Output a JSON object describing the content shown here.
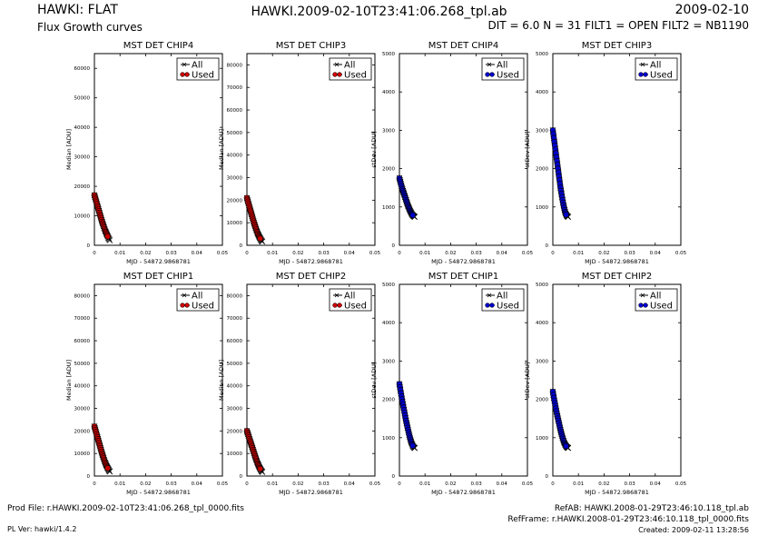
{
  "header": {
    "title_left": "HAWKI: FLAT",
    "subtitle_left": "Flux Growth curves",
    "title_center": "HAWKI.2009-02-10T23:41:06.268_tpl.ab",
    "date_right": "2009-02-10",
    "params_right": "DIT = 6.0 N = 31 FILT1 = OPEN FILT2 = NB1190"
  },
  "footer": {
    "prod_file": "Prod File: r.HAWKI.2009-02-10T23:41:06.268_tpl_0000.fits",
    "pl_ver": "PL Ver: hawki/1.4.2",
    "ref_ab": "RefAB: HAWKI.2008-01-29T23:46:10.118_tpl.ab",
    "ref_frame": "RefFrame: r.HAWKI.2008-01-29T23:46:10.118_tpl_0000.fits",
    "created": "Created: 2009-02-11 13:28:56"
  },
  "colors": {
    "all": "#000000",
    "used_median": "#cc0000",
    "used_stdev": "#0000cc"
  },
  "chart_data": [
    {
      "type": "scatter",
      "title": "MST DET CHIP4",
      "xlabel": "MJD - 54872.9868781",
      "ylabel": "Median [ADU]",
      "xlim": [
        0,
        0.05
      ],
      "ylim": [
        0,
        65000
      ],
      "xticks": [
        "0",
        "0.01",
        "0.02",
        "0.03",
        "0.04",
        "0.05"
      ],
      "yticks": [
        "0",
        "10000",
        "20000",
        "30000",
        "40000",
        "50000",
        "60000"
      ],
      "legend": [
        "All",
        "Used"
      ],
      "legend_position": "top-right",
      "used_color": "#cc0000",
      "x": [
        0.0,
        0.0002,
        0.0004,
        0.0006,
        0.0008,
        0.001,
        0.0012,
        0.0014,
        0.0016,
        0.0018,
        0.002,
        0.0022,
        0.0024,
        0.0026,
        0.0028,
        0.003,
        0.0032,
        0.0034,
        0.0036,
        0.0038,
        0.004,
        0.0042,
        0.0044,
        0.0046,
        0.0048,
        0.005,
        0.0052,
        0.0054,
        0.0056,
        0.0058,
        0.006
      ],
      "y": [
        17000,
        16400,
        15800,
        15200,
        14600,
        14000,
        13400,
        12800,
        12200,
        11600,
        11000,
        10400,
        9800,
        9200,
        8600,
        8000,
        7500,
        7000,
        6500,
        6000,
        5500,
        5000,
        4600,
        4200,
        3800,
        3400,
        3000,
        2600,
        2300,
        2000,
        1700
      ],
      "used_count": 27
    },
    {
      "type": "scatter",
      "title": "MST DET CHIP3",
      "xlabel": "MJD - 54872.9868781",
      "ylabel": "Median [ADU]",
      "xlim": [
        0,
        0.05
      ],
      "ylim": [
        0,
        85000
      ],
      "xticks": [
        "0",
        "0.01",
        "0.02",
        "0.03",
        "0.04",
        "0.05"
      ],
      "yticks": [
        "0",
        "10000",
        "20000",
        "30000",
        "40000",
        "50000",
        "60000",
        "70000",
        "80000"
      ],
      "legend": [
        "All",
        "Used"
      ],
      "legend_position": "top-right",
      "used_color": "#cc0000",
      "x": [
        0.0,
        0.0002,
        0.0004,
        0.0006,
        0.0008,
        0.001,
        0.0012,
        0.0014,
        0.0016,
        0.0018,
        0.002,
        0.0022,
        0.0024,
        0.0026,
        0.0028,
        0.003,
        0.0032,
        0.0034,
        0.0036,
        0.0038,
        0.004,
        0.0042,
        0.0044,
        0.0046,
        0.0048,
        0.005,
        0.0052,
        0.0054,
        0.0056,
        0.0058,
        0.006
      ],
      "y": [
        21000,
        20200,
        19400,
        18600,
        17800,
        17000,
        16200,
        15400,
        14600,
        13800,
        13000,
        12200,
        11400,
        10600,
        9900,
        9200,
        8500,
        7800,
        7100,
        6500,
        5900,
        5300,
        4800,
        4300,
        3800,
        3400,
        3000,
        2600,
        2200,
        1900,
        1600
      ],
      "used_count": 27
    },
    {
      "type": "scatter",
      "title": "MST DET CHIP4",
      "xlabel": "MJD - 54872.9868781",
      "ylabel": "stDev [ADU]",
      "xlim": [
        0,
        0.05
      ],
      "ylim": [
        0,
        5000
      ],
      "xticks": [
        "0",
        "0.01",
        "0.02",
        "0.03",
        "0.04",
        "0.05"
      ],
      "yticks": [
        "0",
        "1000",
        "2000",
        "3000",
        "4000",
        "5000"
      ],
      "legend": [
        "All",
        "Used"
      ],
      "legend_position": "top-right",
      "used_color": "#0000cc",
      "x": [
        0.0,
        0.0002,
        0.0004,
        0.0006,
        0.0008,
        0.001,
        0.0012,
        0.0014,
        0.0016,
        0.0018,
        0.002,
        0.0022,
        0.0024,
        0.0026,
        0.0028,
        0.003,
        0.0032,
        0.0034,
        0.0036,
        0.0038,
        0.004,
        0.0042,
        0.0044,
        0.0046,
        0.0048,
        0.005,
        0.0052,
        0.0054,
        0.0056,
        0.0058,
        0.006
      ],
      "y": [
        1750,
        1700,
        1650,
        1600,
        1550,
        1500,
        1460,
        1420,
        1380,
        1340,
        1300,
        1260,
        1220,
        1180,
        1140,
        1100,
        1060,
        1020,
        990,
        960,
        930,
        900,
        870,
        845,
        820,
        800,
        785,
        770,
        760,
        750,
        740
      ],
      "used_count": 27
    },
    {
      "type": "scatter",
      "title": "MST DET CHIP3",
      "xlabel": "MJD - 54872.9868781",
      "ylabel": "stDev [ADU]",
      "xlim": [
        0,
        0.05
      ],
      "ylim": [
        0,
        5000
      ],
      "xticks": [
        "0",
        "0.01",
        "0.02",
        "0.03",
        "0.04",
        "0.05"
      ],
      "yticks": [
        "0",
        "1000",
        "2000",
        "3000",
        "4000",
        "5000"
      ],
      "legend": [
        "All",
        "Used"
      ],
      "legend_position": "top-right",
      "used_color": "#0000cc",
      "x": [
        0.0,
        0.0002,
        0.0004,
        0.0006,
        0.0008,
        0.001,
        0.0012,
        0.0014,
        0.0016,
        0.0018,
        0.002,
        0.0022,
        0.0024,
        0.0026,
        0.0028,
        0.003,
        0.0032,
        0.0034,
        0.0036,
        0.0038,
        0.004,
        0.0042,
        0.0044,
        0.0046,
        0.0048,
        0.005,
        0.0052,
        0.0054,
        0.0056,
        0.0058,
        0.006
      ],
      "y": [
        3000,
        2900,
        2800,
        2700,
        2600,
        2500,
        2400,
        2300,
        2200,
        2100,
        2000,
        1900,
        1800,
        1700,
        1600,
        1500,
        1420,
        1340,
        1260,
        1180,
        1110,
        1040,
        980,
        920,
        870,
        830,
        800,
        780,
        760,
        750,
        740
      ],
      "used_count": 27
    },
    {
      "type": "scatter",
      "title": "MST DET CHIP1",
      "xlabel": "MJD - 54872.9868781",
      "ylabel": "Median [ADU]",
      "xlim": [
        0,
        0.05
      ],
      "ylim": [
        0,
        85000
      ],
      "xticks": [
        "0",
        "0.01",
        "0.02",
        "0.03",
        "0.04",
        "0.05"
      ],
      "yticks": [
        "0",
        "10000",
        "20000",
        "30000",
        "40000",
        "50000",
        "60000",
        "70000",
        "80000"
      ],
      "legend": [
        "All",
        "Used"
      ],
      "legend_position": "top-right",
      "used_color": "#cc0000",
      "x": [
        0.0,
        0.0002,
        0.0004,
        0.0006,
        0.0008,
        0.001,
        0.0012,
        0.0014,
        0.0016,
        0.0018,
        0.002,
        0.0022,
        0.0024,
        0.0026,
        0.0028,
        0.003,
        0.0032,
        0.0034,
        0.0036,
        0.0038,
        0.004,
        0.0042,
        0.0044,
        0.0046,
        0.0048,
        0.005,
        0.0052,
        0.0054,
        0.0056,
        0.0058,
        0.006
      ],
      "y": [
        22000,
        21200,
        20400,
        19600,
        18800,
        18000,
        17200,
        16400,
        15600,
        14800,
        14000,
        13200,
        12400,
        11600,
        10800,
        10000,
        9300,
        8600,
        7900,
        7200,
        6600,
        6000,
        5400,
        4900,
        4400,
        3900,
        3500,
        3100,
        2700,
        2300,
        2000
      ],
      "used_count": 27
    },
    {
      "type": "scatter",
      "title": "MST DET CHIP2",
      "xlabel": "MJD - 54872.9868781",
      "ylabel": "Median [ADU]",
      "xlim": [
        0,
        0.05
      ],
      "ylim": [
        0,
        85000
      ],
      "xticks": [
        "0",
        "0.01",
        "0.02",
        "0.03",
        "0.04",
        "0.05"
      ],
      "yticks": [
        "0",
        "10000",
        "20000",
        "30000",
        "40000",
        "50000",
        "60000",
        "70000",
        "80000"
      ],
      "legend": [
        "All",
        "Used"
      ],
      "legend_position": "top-right",
      "used_color": "#cc0000",
      "x": [
        0.0,
        0.0002,
        0.0004,
        0.0006,
        0.0008,
        0.001,
        0.0012,
        0.0014,
        0.0016,
        0.0018,
        0.002,
        0.0022,
        0.0024,
        0.0026,
        0.0028,
        0.003,
        0.0032,
        0.0034,
        0.0036,
        0.0038,
        0.004,
        0.0042,
        0.0044,
        0.0046,
        0.0048,
        0.005,
        0.0052,
        0.0054,
        0.0056,
        0.0058,
        0.006
      ],
      "y": [
        20000,
        19300,
        18600,
        17900,
        17200,
        16500,
        15800,
        15100,
        14400,
        13700,
        13000,
        12300,
        11600,
        10900,
        10200,
        9500,
        8800,
        8100,
        7400,
        6800,
        6200,
        5600,
        5100,
        4600,
        4100,
        3600,
        3200,
        2800,
        2400,
        2100,
        1800
      ],
      "used_count": 27
    },
    {
      "type": "scatter",
      "title": "MST DET CHIP1",
      "xlabel": "MJD - 54872.9868781",
      "ylabel": "stDev [ADU]",
      "xlim": [
        0,
        0.05
      ],
      "ylim": [
        0,
        5000
      ],
      "xticks": [
        "0",
        "0.01",
        "0.02",
        "0.03",
        "0.04",
        "0.05"
      ],
      "yticks": [
        "0",
        "1000",
        "2000",
        "3000",
        "4000",
        "5000"
      ],
      "legend": [
        "All",
        "Used"
      ],
      "legend_position": "top-right",
      "used_color": "#0000cc",
      "x": [
        0.0,
        0.0002,
        0.0004,
        0.0006,
        0.0008,
        0.001,
        0.0012,
        0.0014,
        0.0016,
        0.0018,
        0.002,
        0.0022,
        0.0024,
        0.0026,
        0.0028,
        0.003,
        0.0032,
        0.0034,
        0.0036,
        0.0038,
        0.004,
        0.0042,
        0.0044,
        0.0046,
        0.0048,
        0.005,
        0.0052,
        0.0054,
        0.0056,
        0.0058,
        0.006
      ],
      "y": [
        2400,
        2320,
        2240,
        2160,
        2080,
        2000,
        1930,
        1860,
        1790,
        1720,
        1650,
        1580,
        1510,
        1440,
        1380,
        1320,
        1260,
        1200,
        1140,
        1080,
        1030,
        980,
        930,
        890,
        850,
        820,
        790,
        770,
        750,
        740,
        730
      ],
      "used_count": 27
    },
    {
      "type": "scatter",
      "title": "MST DET CHIP2",
      "xlabel": "MJD - 54872.9868781",
      "ylabel": "stDev [ADU]",
      "xlim": [
        0,
        0.05
      ],
      "ylim": [
        0,
        5000
      ],
      "xticks": [
        "0",
        "0.01",
        "0.02",
        "0.03",
        "0.04",
        "0.05"
      ],
      "yticks": [
        "0",
        "1000",
        "2000",
        "3000",
        "4000",
        "5000"
      ],
      "legend": [
        "All",
        "Used"
      ],
      "legend_position": "top-right",
      "used_color": "#0000cc",
      "x": [
        0.0,
        0.0002,
        0.0004,
        0.0006,
        0.0008,
        0.001,
        0.0012,
        0.0014,
        0.0016,
        0.0018,
        0.002,
        0.0022,
        0.0024,
        0.0026,
        0.0028,
        0.003,
        0.0032,
        0.0034,
        0.0036,
        0.0038,
        0.004,
        0.0042,
        0.0044,
        0.0046,
        0.0048,
        0.005,
        0.0052,
        0.0054,
        0.0056,
        0.0058,
        0.006
      ],
      "y": [
        2200,
        2120,
        2040,
        1970,
        1900,
        1830,
        1760,
        1690,
        1620,
        1560,
        1500,
        1440,
        1380,
        1320,
        1260,
        1200,
        1150,
        1100,
        1050,
        1000,
        960,
        920,
        880,
        850,
        820,
        800,
        780,
        760,
        750,
        740,
        730
      ],
      "used_count": 27
    }
  ]
}
